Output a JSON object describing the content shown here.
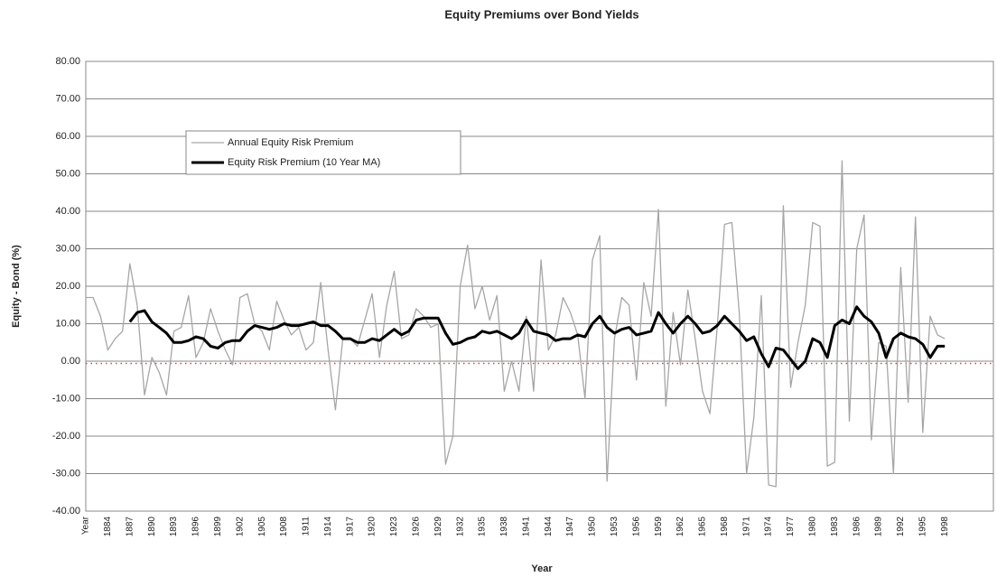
{
  "chart_data": {
    "type": "line",
    "title": "Equity Premiums over Bond Yields",
    "x_label": "Year",
    "y_label": "Equity - Bond (%)",
    "categories": [
      "Year",
      null,
      null,
      "1884",
      null,
      null,
      "1887",
      null,
      null,
      "1890",
      null,
      null,
      "1893",
      null,
      null,
      "1896",
      null,
      null,
      "1899",
      null,
      null,
      "1902",
      null,
      null,
      "1905",
      null,
      null,
      "1908",
      null,
      null,
      "1911",
      null,
      null,
      "1914",
      null,
      null,
      "1917",
      null,
      null,
      "1920",
      null,
      null,
      "1923",
      null,
      null,
      "1926",
      null,
      null,
      "1929",
      null,
      null,
      "1932",
      null,
      null,
      "1935",
      null,
      null,
      "1938",
      null,
      null,
      "1941",
      null,
      null,
      "1944",
      null,
      null,
      "1947",
      null,
      null,
      "1950",
      null,
      null,
      "1953",
      null,
      null,
      "1956",
      null,
      null,
      "1959",
      null,
      null,
      "1962",
      null,
      null,
      "1965",
      null,
      null,
      "1968",
      null,
      null,
      "1971",
      null,
      null,
      "1974",
      null,
      null,
      "1977",
      null,
      null,
      "1980",
      null,
      null,
      "1983",
      null,
      null,
      "1986",
      null,
      null,
      "1989",
      null,
      null,
      "1992",
      null,
      null,
      "1995",
      null,
      null,
      "1998",
      null,
      null
    ],
    "series": [
      {
        "name": "Annual Equity Risk Premium",
        "color": "#a6a6a6",
        "width": 1.3,
        "values": [
          17,
          17,
          12,
          3,
          6,
          8,
          26,
          15,
          -9,
          1,
          -3,
          -9,
          8,
          9,
          17.5,
          1,
          5,
          14,
          8,
          3,
          -1,
          17,
          18,
          10,
          8,
          3,
          16,
          11,
          7,
          9,
          3,
          5,
          21,
          3,
          -13,
          6,
          6,
          4,
          11,
          18,
          1,
          15,
          24,
          6,
          7,
          14,
          12,
          9,
          10,
          -27.5,
          -20,
          20,
          31,
          14,
          20,
          11,
          17.5,
          -8,
          0,
          -8,
          12,
          -8,
          27,
          3,
          7,
          17,
          13,
          7,
          -10,
          27,
          33.5,
          -32,
          6,
          17,
          15,
          -5,
          21,
          12,
          40.5,
          -12,
          13,
          -1,
          19,
          6,
          -8,
          -14,
          9,
          36.5,
          37,
          13,
          -30,
          -15,
          17.5,
          -33,
          -33.5,
          41.5,
          -7,
          5,
          15,
          37,
          36,
          -28,
          -27,
          53.5,
          -16,
          30,
          39,
          -21,
          5,
          4,
          -30,
          25,
          -11,
          38.5,
          -19,
          12,
          7,
          6,
          null,
          null
        ]
      },
      {
        "name": "Equity Risk Premium (10 Year MA)",
        "color": "#000000",
        "width": 3,
        "values": [
          null,
          null,
          null,
          null,
          null,
          null,
          10.5,
          13,
          13.5,
          10.5,
          9,
          7.5,
          5,
          5,
          5.5,
          6.5,
          6,
          4,
          3.5,
          5,
          5.5,
          5.5,
          8,
          9.5,
          9,
          8.5,
          9,
          10,
          9.5,
          9.5,
          10,
          10.5,
          9.5,
          9.5,
          8,
          6,
          6,
          5,
          5,
          6,
          5.5,
          7,
          8.5,
          7,
          8,
          11,
          11.5,
          11.5,
          11.5,
          7.5,
          4.5,
          5,
          6,
          6.5,
          8,
          7.5,
          8,
          7,
          6,
          7.5,
          11,
          8,
          7.5,
          7,
          5.5,
          6,
          6,
          7,
          6.5,
          10,
          12,
          9,
          7.5,
          8.5,
          9,
          7,
          7.5,
          8,
          13,
          10,
          7.5,
          10,
          12,
          10,
          7.5,
          8,
          9.5,
          12,
          10,
          8,
          5.5,
          6.5,
          2,
          -1.5,
          3.5,
          3,
          0.5,
          -2,
          0,
          6,
          5,
          1,
          9.5,
          11,
          10,
          14.5,
          12,
          10.5,
          7.5,
          1,
          6,
          7.5,
          6.5,
          6,
          4.5,
          1,
          4,
          4,
          null,
          null
        ]
      }
    ],
    "reference_line": {
      "value": -0.6,
      "color": "#c0504d"
    },
    "ylim": [
      -40,
      80
    ],
    "yticks": [
      {
        "value": -40,
        "label": "-40.00"
      },
      {
        "value": -30,
        "label": "-30.00"
      },
      {
        "value": -20,
        "label": "-20.00"
      },
      {
        "value": -10,
        "label": "-10.00"
      },
      {
        "value": 0,
        "label": "0.00"
      },
      {
        "value": 10,
        "label": "10.00"
      },
      {
        "value": 20,
        "label": "20.00"
      },
      {
        "value": 30,
        "label": "30.00"
      },
      {
        "value": 40,
        "label": "40.00"
      },
      {
        "value": 50,
        "label": "50.00"
      },
      {
        "value": 60,
        "label": "60.00"
      },
      {
        "value": 70,
        "label": "70.00"
      },
      {
        "value": 80,
        "label": "80.00"
      }
    ],
    "grid": true,
    "legend": "upper left"
  }
}
